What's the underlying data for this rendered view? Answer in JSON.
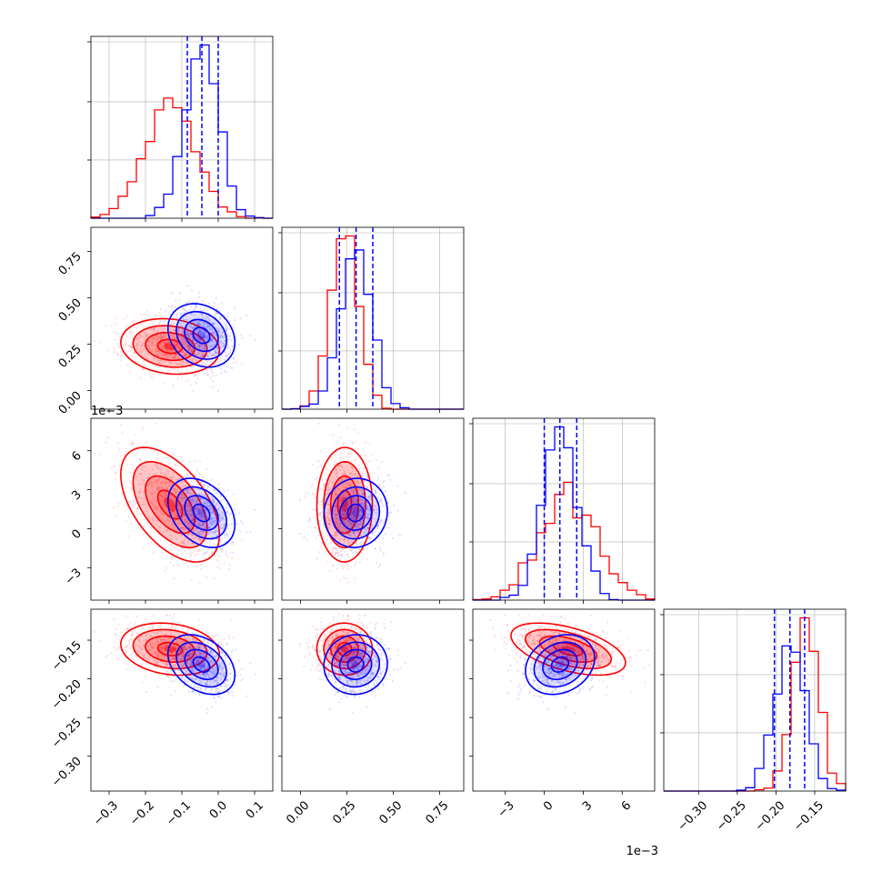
{
  "chart_data": {
    "type": "corner",
    "grid": true,
    "colors": {
      "series_a": "#ff0000",
      "series_b": "#0000ff",
      "grid": "#b0b0b0"
    },
    "params": [
      {
        "range": [
          -0.35,
          0.15
        ],
        "ticks": [
          -0.3,
          -0.2,
          -0.1,
          0.0,
          0.1
        ],
        "tick_labels": [
          "−0.3",
          "−0.2",
          "−0.1",
          "0.0",
          "0.1"
        ]
      },
      {
        "range": [
          -0.1,
          0.88
        ],
        "ticks": [
          0.0,
          0.25,
          0.5,
          0.75
        ],
        "tick_labels": [
          "0.00",
          "0.25",
          "0.50",
          "0.75"
        ]
      },
      {
        "range": [
          -0.0055,
          0.0085
        ],
        "ticks": [
          -0.003,
          0.0,
          0.003,
          0.006
        ],
        "tick_labels": [
          "−3",
          "0",
          "3",
          "6"
        ],
        "offset_label": "1e−3"
      },
      {
        "range": [
          -0.345,
          -0.11
        ],
        "ticks": [
          -0.3,
          -0.25,
          -0.2,
          -0.15
        ],
        "tick_labels": [
          "−0.30",
          "−0.25",
          "−0.20",
          "−0.15"
        ]
      }
    ],
    "series": [
      {
        "color": "#ff0000",
        "means": [
          -0.13,
          0.24,
          0.0018,
          -0.162
        ],
        "sds": [
          0.07,
          0.075,
          0.0022,
          0.017
        ],
        "corr": [
          [
            1,
            -0.2,
            -0.55,
            -0.2
          ],
          [
            -0.2,
            1,
            0.05,
            0.0
          ],
          [
            -0.55,
            0.05,
            1,
            -0.5
          ],
          [
            -0.2,
            0.0,
            -0.5,
            1
          ]
        ]
      },
      {
        "color": "#0000ff",
        "means": [
          -0.045,
          0.3,
          0.0012,
          -0.182
        ],
        "sds": [
          0.045,
          0.085,
          0.0013,
          0.019
        ],
        "corr": [
          [
            1,
            -0.2,
            -0.3,
            -0.35
          ],
          [
            -0.2,
            1,
            0.0,
            0.0
          ],
          [
            -0.3,
            0.0,
            1,
            0.2
          ],
          [
            -0.35,
            0.0,
            0.2,
            1
          ]
        ]
      }
    ],
    "quantile_lines": [
      [
        -0.085,
        -0.045,
        0.0
      ],
      [
        0.21,
        0.3,
        0.39
      ],
      [
        0.0,
        0.0012,
        0.0025
      ],
      [
        -0.202,
        -0.182,
        -0.163
      ]
    ],
    "histogram_bins": 20
  }
}
